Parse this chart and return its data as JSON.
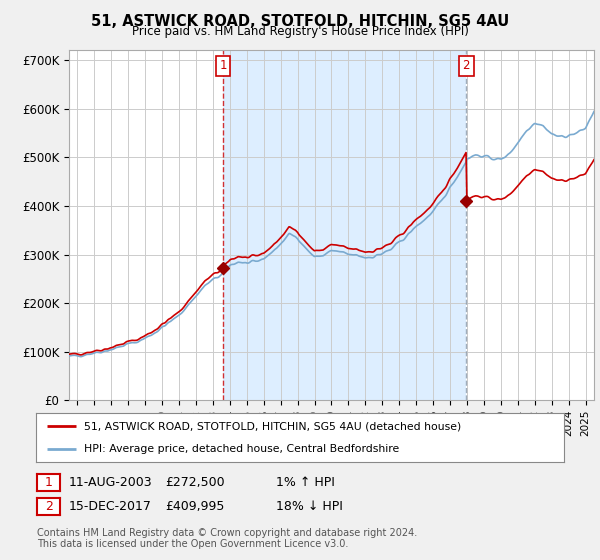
{
  "title": "51, ASTWICK ROAD, STOTFOLD, HITCHIN, SG5 4AU",
  "subtitle": "Price paid vs. HM Land Registry's House Price Index (HPI)",
  "ylim": [
    0,
    720000
  ],
  "yticks": [
    0,
    100000,
    200000,
    300000,
    400000,
    500000,
    600000,
    700000
  ],
  "ytick_labels": [
    "£0",
    "£100K",
    "£200K",
    "£300K",
    "£400K",
    "£500K",
    "£600K",
    "£700K"
  ],
  "background_color": "#f0f0f0",
  "plot_bg_color": "#ffffff",
  "grid_color": "#cccccc",
  "hpi_color": "#7aaad0",
  "sale_color": "#cc0000",
  "vline1_color": "#cc0000",
  "vline2_color": "#8899aa",
  "marker_color": "#990000",
  "sale1_x": 2003.6,
  "sale1_y": 272500,
  "sale1_label": "1",
  "sale2_x": 2017.96,
  "sale2_y": 409995,
  "sale2_label": "2",
  "shade_color": "#ddeeff",
  "legend_line1": "51, ASTWICK ROAD, STOTFOLD, HITCHIN, SG5 4AU (detached house)",
  "legend_line2": "HPI: Average price, detached house, Central Bedfordshire",
  "table_row1": [
    "1",
    "11-AUG-2003",
    "£272,500",
    "1% ↑ HPI"
  ],
  "table_row2": [
    "2",
    "15-DEC-2017",
    "£409,995",
    "18% ↓ HPI"
  ],
  "footnote": "Contains HM Land Registry data © Crown copyright and database right 2024.\nThis data is licensed under the Open Government Licence v3.0.",
  "xmin": 1994.5,
  "xmax": 2025.5
}
